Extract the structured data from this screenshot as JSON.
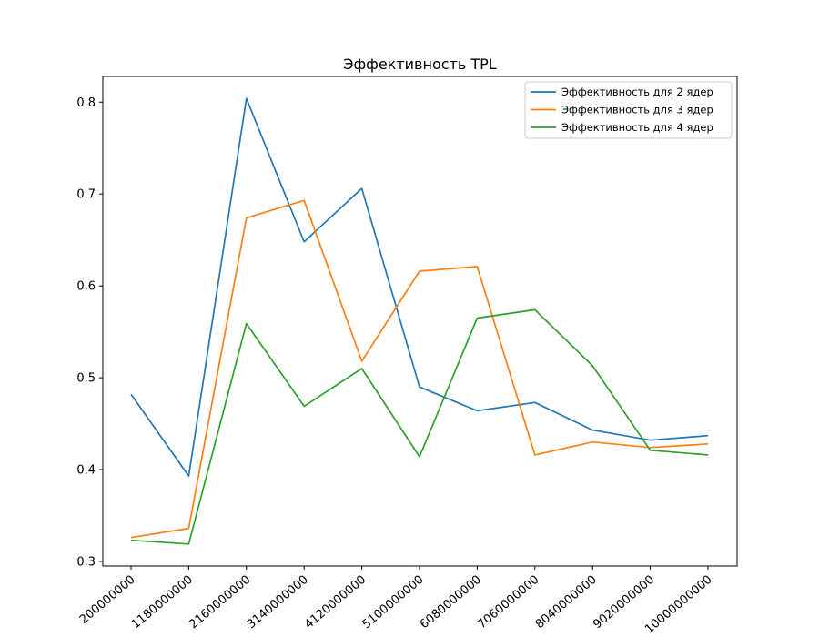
{
  "chart_data": {
    "type": "line",
    "title": "Эффективность TPL",
    "xlabel": "",
    "ylabel": "",
    "x": [
      "200000000",
      "1180000000",
      "2160000000",
      "3140000000",
      "4120000000",
      "5100000000",
      "6080000000",
      "7060000000",
      "8040000000",
      "9020000000",
      "10000000000"
    ],
    "ylim": [
      0.295,
      0.828
    ],
    "yticks": [
      0.3,
      0.4,
      0.5,
      0.6,
      0.7,
      0.8
    ],
    "grid": false,
    "legend_position": "top-right",
    "series": [
      {
        "name": "Эффективность для 2 ядер",
        "color": "#1f77b4",
        "values": [
          0.482,
          0.393,
          0.804,
          0.648,
          0.706,
          0.49,
          0.464,
          0.473,
          0.443,
          0.432,
          0.437
        ]
      },
      {
        "name": "Эффективность для 3 ядер",
        "color": "#ff7f0e",
        "values": [
          0.326,
          0.336,
          0.674,
          0.693,
          0.518,
          0.616,
          0.621,
          0.416,
          0.43,
          0.424,
          0.428
        ]
      },
      {
        "name": "Эффективность для 4 ядер",
        "color": "#2ca02c",
        "values": [
          0.323,
          0.319,
          0.559,
          0.469,
          0.51,
          0.414,
          0.565,
          0.574,
          0.513,
          0.421,
          0.416
        ]
      }
    ]
  }
}
